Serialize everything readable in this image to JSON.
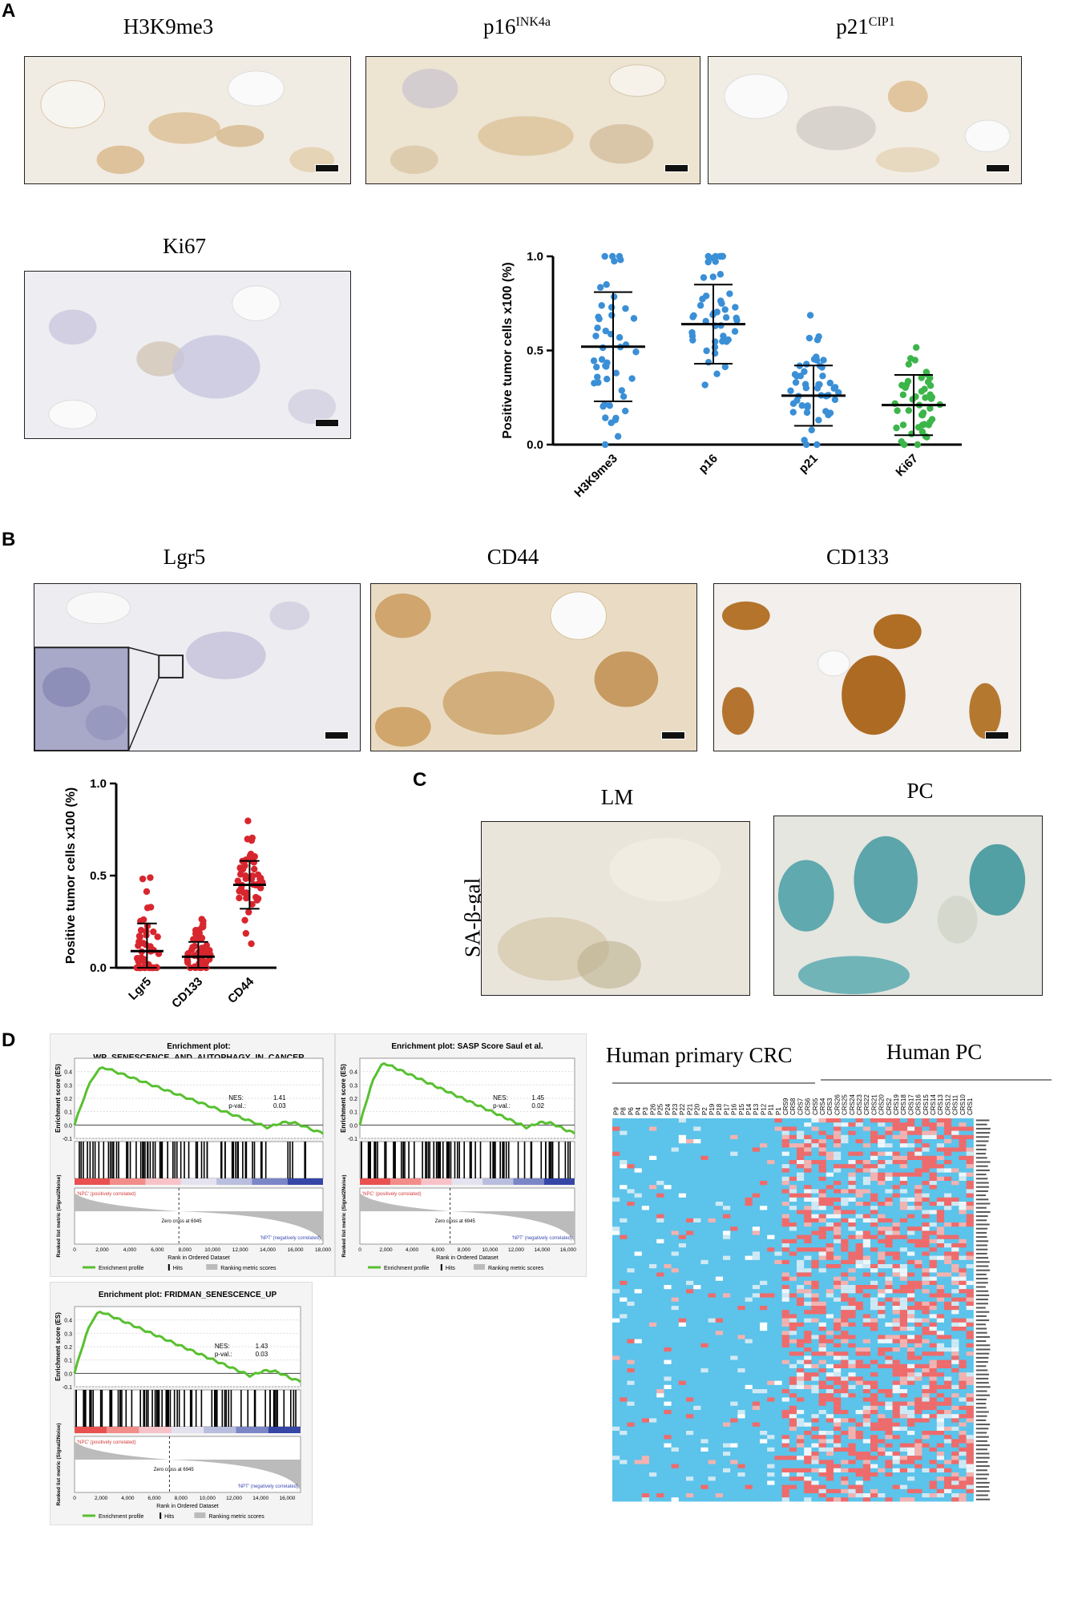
{
  "panel_labels": {
    "a": "A",
    "b": "B",
    "c": "C",
    "d": "D"
  },
  "panelA": {
    "images": [
      {
        "title": "H3K9me3",
        "sup": ""
      },
      {
        "title": "p16",
        "sup": "INK4a"
      },
      {
        "title": "p21",
        "sup": "CIP1"
      },
      {
        "title": "Ki67",
        "sup": ""
      }
    ]
  },
  "panelB": {
    "images": [
      {
        "title": "Lgr5"
      },
      {
        "title": "CD44"
      },
      {
        "title": "CD133"
      }
    ]
  },
  "panelC": {
    "row_label": "SA-β-gal",
    "images": [
      {
        "title": "LM"
      },
      {
        "title": "PC"
      }
    ]
  },
  "panelD": {
    "heatmap_left_label": "Human primary CRC",
    "heatmap_right_label": "Human PC",
    "sample_labels": [
      "P9",
      "P8",
      "P6",
      "P4",
      "P3",
      "P26",
      "P25",
      "P24",
      "P23",
      "P22",
      "P21",
      "P20",
      "P2",
      "P19",
      "P18",
      "P17",
      "P16",
      "P15",
      "P14",
      "P13",
      "P12",
      "P11",
      "P1",
      "CRS9",
      "CRS8",
      "CRS7",
      "CRS6",
      "CRS5",
      "CRS4",
      "CRS3",
      "CRS26",
      "CRS25",
      "CRS24",
      "CRS23",
      "CRS22",
      "CRS21",
      "CRS20",
      "CRS2",
      "CRS19",
      "CRS18",
      "CRS17",
      "CRS16",
      "CRS15",
      "CRS14",
      "CRS13",
      "CRS12",
      "CRS11",
      "CRS10",
      "CRS1"
    ],
    "gsea": [
      {
        "title_line1": "Enrichment plot:",
        "title_line2": "WP_SENESCENCE_AND_AUTOPHAGY_IN_CANCER",
        "nes_label": "NES:",
        "nes": "1.41",
        "p_label": "p-val.:",
        "p": "0.03",
        "max_es": 0.43,
        "xmax": 18000
      },
      {
        "title_line1": "Enrichment plot: SASP Score Saul et al.",
        "title_line2": "",
        "nes_label": "NES:",
        "nes": "1.45",
        "p_label": "p-val.:",
        "p": "0.02",
        "max_es": 0.46,
        "xmax": 16500
      },
      {
        "title_line1": "Enrichment plot: FRIDMAN_SENESCENCE_UP",
        "title_line2": "",
        "nes_label": "NES:",
        "nes": "1.43",
        "p_label": "p-val.:",
        "p": "0.03",
        "max_es": 0.46,
        "xmax": 17000
      }
    ],
    "gsea_common": {
      "es_ylabel": "Enrichment score (ES)",
      "rank_ylabel": "Ranked list metric (Signal2Noise)",
      "xlabel": "Rank in Ordered Dataset",
      "pos_label": "'NPC' (positively correlated)",
      "neg_label": "'NPT' (negatively correlated)",
      "zero_cross": "Zero cross at 6945",
      "legend": [
        "Enrichment profile",
        "Hits",
        "Ranking metric scores"
      ]
    }
  },
  "chart_data": [
    {
      "type": "scatter",
      "title": "",
      "ylabel": "Positive tumor cells x100 (%)",
      "ylim": [
        0,
        1.0
      ],
      "yticks": [
        "0.0",
        "0.5",
        "1.0"
      ],
      "categories": [
        "H3K9me3",
        "p16",
        "p21",
        "Ki67"
      ],
      "colors": [
        "#3a8fd6",
        "#3a8fd6",
        "#3a8fd6",
        "#3cb54a"
      ],
      "mean": [
        0.52,
        0.64,
        0.26,
        0.21
      ],
      "sd": [
        0.29,
        0.21,
        0.16,
        0.16
      ]
    },
    {
      "type": "scatter",
      "title": "",
      "ylabel": "Positive tumor cells x100 (%)",
      "ylim": [
        0,
        1.0
      ],
      "yticks": [
        "0.0",
        "0.5",
        "1.0"
      ],
      "categories": [
        "Lgr5",
        "CD133",
        "CD44"
      ],
      "colors": [
        "#d8262e",
        "#d8262e",
        "#d8262e"
      ],
      "mean": [
        0.09,
        0.06,
        0.45
      ],
      "sd": [
        0.15,
        0.08,
        0.13
      ]
    }
  ]
}
